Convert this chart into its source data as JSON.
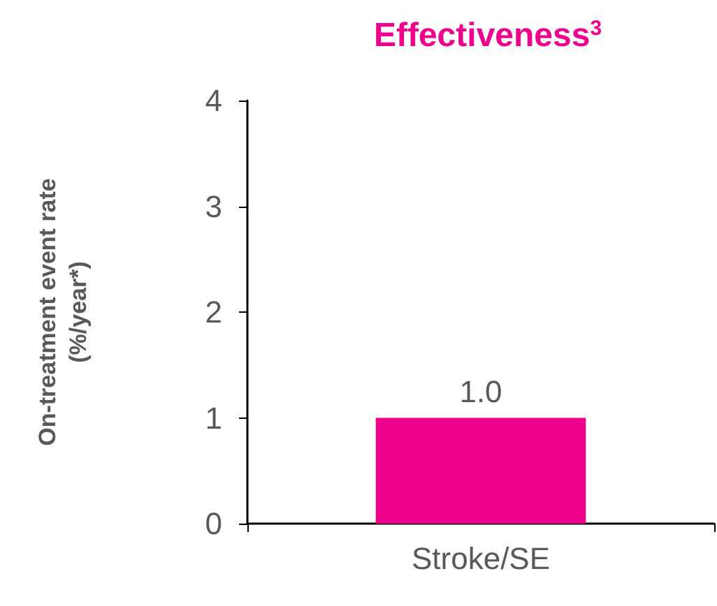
{
  "chart_data": {
    "type": "bar",
    "title": "Effectiveness$^{3}$",
    "ylabel": "On-treatment event rate\n(%/year*)",
    "categories": [
      "Stroke/SE"
    ],
    "values": [
      1.0
    ],
    "value_labels": [
      "1.0"
    ],
    "color": "#ec008c",
    "ylim": [
      0,
      4
    ],
    "yticks": [
      0,
      1,
      2,
      3,
      4
    ],
    "grid": false
  }
}
